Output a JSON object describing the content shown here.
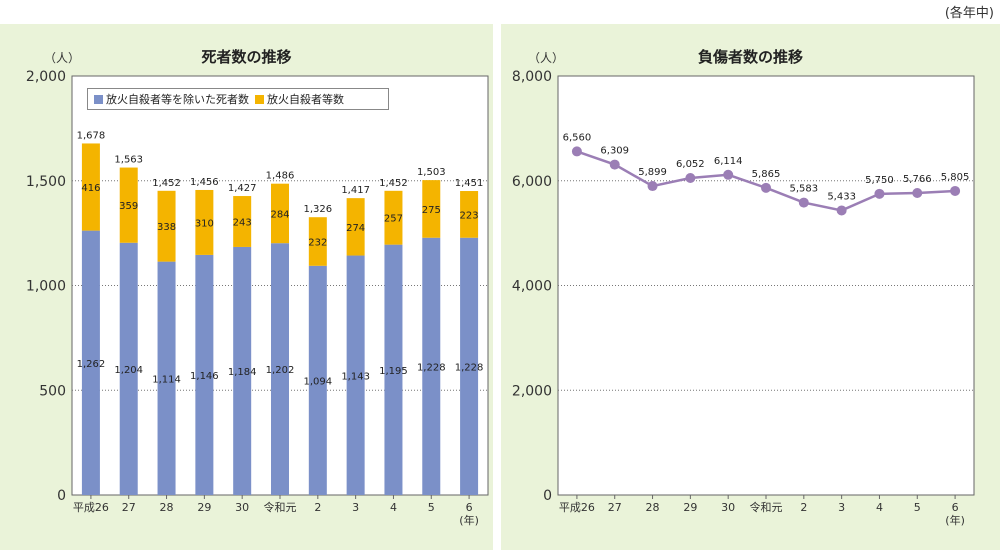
{
  "note": "(各年中)",
  "colors": {
    "dead_other": "#7b90c8",
    "dead_arson": "#f4b400",
    "injured": "#9b7eb5",
    "panel": "#eaf3d9"
  },
  "chart_data": [
    {
      "type": "bar",
      "stacked": true,
      "title": "死者数の推移",
      "ylabel": "（人）",
      "xlabel": "(年)",
      "ylim": [
        0,
        2000
      ],
      "yticks": [
        "2,000",
        "1,500",
        "1,000",
        "500",
        "0"
      ],
      "ytick_values": [
        2000,
        1500,
        1000,
        500,
        0
      ],
      "categories": [
        "平成26",
        "27",
        "28",
        "29",
        "30",
        "令和元",
        "2",
        "3",
        "4",
        "5",
        "6"
      ],
      "legend": [
        "放火自殺者等を除いた死者数",
        "放火自殺者等数"
      ],
      "legend_position": "top-left",
      "series": [
        {
          "name": "放火自殺者等を除いた死者数",
          "values": [
            1262,
            1204,
            1114,
            1146,
            1184,
            1202,
            1094,
            1143,
            1195,
            1228,
            1228
          ],
          "labels": [
            "1,262",
            "1,204",
            "1,114",
            "1,146",
            "1,184",
            "1,202",
            "1,094",
            "1,143",
            "1,195",
            "1,228",
            "1,228"
          ]
        },
        {
          "name": "放火自殺者等数",
          "values": [
            416,
            359,
            338,
            310,
            243,
            284,
            232,
            274,
            257,
            275,
            223
          ],
          "labels": [
            "416",
            "359",
            "338",
            "310",
            "243",
            "284",
            "232",
            "274",
            "257",
            "275",
            "223"
          ]
        }
      ],
      "totals": [
        1678,
        1563,
        1452,
        1456,
        1427,
        1486,
        1326,
        1417,
        1452,
        1503,
        1451
      ],
      "total_labels": [
        "1,678",
        "1,563",
        "1,452",
        "1,456",
        "1,427",
        "1,486",
        "1,326",
        "1,417",
        "1,452",
        "1,503",
        "1,451"
      ],
      "grid": "horizontal dotted"
    },
    {
      "type": "line",
      "title": "負傷者数の推移",
      "ylabel": "（人）",
      "xlabel": "(年)",
      "ylim": [
        0,
        8000
      ],
      "yticks": [
        "8,000",
        "6,000",
        "4,000",
        "2,000",
        "0"
      ],
      "ytick_values": [
        8000,
        6000,
        4000,
        2000,
        0
      ],
      "categories": [
        "平成26",
        "27",
        "28",
        "29",
        "30",
        "令和元",
        "2",
        "3",
        "4",
        "5",
        "6"
      ],
      "series": [
        {
          "values": [
            6560,
            6309,
            5899,
            6052,
            6114,
            5865,
            5583,
            5433,
            5750,
            5766,
            5805
          ],
          "labels": [
            "6,560",
            "6,309",
            "5,899",
            "6,052",
            "6,114",
            "5,865",
            "5,583",
            "5,433",
            "5,750",
            "5,766",
            "5,805"
          ]
        }
      ],
      "grid": "horizontal dotted"
    }
  ]
}
